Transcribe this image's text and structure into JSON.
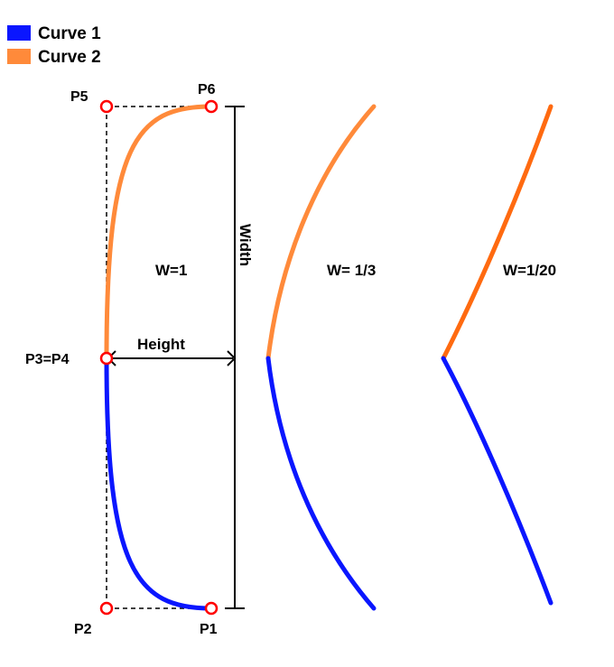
{
  "legend": [
    {
      "label": "Curve 1",
      "color": "#0a16ff"
    },
    {
      "label": "Curve 2",
      "color": "#ff8a3a"
    }
  ],
  "points": {
    "p5": "P5",
    "p6": "P6",
    "p3p4": "P3=P4",
    "p2": "P2",
    "p1": "P1"
  },
  "dimensions": {
    "width": "Width",
    "height": "Height"
  },
  "weights": {
    "w1": "W=1",
    "w13": "W= 1/3",
    "w120": "W=1/20"
  },
  "colors": {
    "curve1": "#0a16ff",
    "curve2_w1": "#ff8a3a",
    "curve2_w13": "#ff8a3a",
    "curve2_w120": "#ff6a10",
    "control_point": "#ff0000"
  }
}
